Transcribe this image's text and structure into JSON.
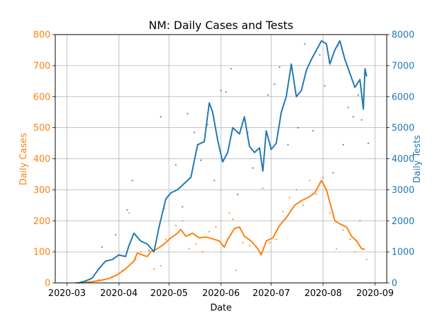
{
  "chart_data": {
    "type": "line",
    "title": "NM: Daily Cases and Tests",
    "xlabel": "Date",
    "ylabel_left": "Daily Cases",
    "ylabel_right": "Daily Tests",
    "grid": true,
    "colors": {
      "cases": "#ff7f0e",
      "tests": "#1f77b4"
    },
    "x_ticks": [
      "2020-03",
      "2020-04",
      "2020-05",
      "2020-06",
      "2020-07",
      "2020-08",
      "2020-09"
    ],
    "x_range": [
      "2020-02-23",
      "2020-09-08"
    ],
    "ylim_left": [
      0,
      800
    ],
    "ylim_right": [
      0,
      8000
    ],
    "yticks_left": [
      "0",
      "100",
      "200",
      "300",
      "400",
      "500",
      "600",
      "700",
      "800"
    ],
    "yticks_right": [
      "0",
      "1000",
      "2000",
      "3000",
      "4000",
      "5000",
      "6000",
      "7000",
      "8000"
    ],
    "series": [
      {
        "axis": "left",
        "points": [
          [
            "2020-03-06",
            0
          ],
          [
            "2020-03-11",
            1
          ],
          [
            "2020-03-16",
            4
          ],
          [
            "2020-03-21",
            8
          ],
          [
            "2020-03-26",
            14
          ],
          [
            "2020-03-31",
            26
          ],
          [
            "2020-04-05",
            45
          ],
          [
            "2020-04-10",
            70
          ],
          [
            "2020-04-12",
            96
          ],
          [
            "2020-04-15",
            90
          ],
          [
            "2020-04-18",
            85
          ],
          [
            "2020-04-20",
            100
          ],
          [
            "2020-04-24",
            110
          ],
          [
            "2020-04-28",
            125
          ],
          [
            "2020-05-02",
            145
          ],
          [
            "2020-05-06",
            160
          ],
          [
            "2020-05-08",
            172
          ],
          [
            "2020-05-11",
            150
          ],
          [
            "2020-05-15",
            160
          ],
          [
            "2020-05-19",
            145
          ],
          [
            "2020-05-23",
            148
          ],
          [
            "2020-05-27",
            142
          ],
          [
            "2020-05-31",
            135
          ],
          [
            "2020-06-03",
            115
          ],
          [
            "2020-06-05",
            140
          ],
          [
            "2020-06-09",
            175
          ],
          [
            "2020-06-12",
            180
          ],
          [
            "2020-06-15",
            150
          ],
          [
            "2020-06-19",
            135
          ],
          [
            "2020-06-23",
            110
          ],
          [
            "2020-06-25",
            90
          ],
          [
            "2020-06-28",
            135
          ],
          [
            "2020-07-02",
            145
          ],
          [
            "2020-07-06",
            185
          ],
          [
            "2020-07-10",
            210
          ],
          [
            "2020-07-15",
            250
          ],
          [
            "2020-07-19",
            265
          ],
          [
            "2020-07-23",
            275
          ],
          [
            "2020-07-27",
            290
          ],
          [
            "2020-07-31",
            330
          ],
          [
            "2020-08-03",
            300
          ],
          [
            "2020-08-06",
            240
          ],
          [
            "2020-08-08",
            200
          ],
          [
            "2020-08-11",
            190
          ],
          [
            "2020-08-15",
            180
          ],
          [
            "2020-08-18",
            150
          ],
          [
            "2020-08-21",
            135
          ],
          [
            "2020-08-24",
            110
          ],
          [
            "2020-08-26",
            108
          ]
        ],
        "scatter": [
          [
            "2020-03-20",
            10
          ],
          [
            "2020-03-28",
            20
          ],
          [
            "2020-04-03",
            40
          ],
          [
            "2020-04-07",
            225
          ],
          [
            "2020-04-11",
            75
          ],
          [
            "2020-04-14",
            100
          ],
          [
            "2020-04-22",
            45
          ],
          [
            "2020-04-26",
            55
          ],
          [
            "2020-04-29",
            140
          ],
          [
            "2020-05-05",
            185
          ],
          [
            "2020-05-09",
            200
          ],
          [
            "2020-05-13",
            110
          ],
          [
            "2020-05-17",
            125
          ],
          [
            "2020-05-21",
            100
          ],
          [
            "2020-05-25",
            165
          ],
          [
            "2020-05-29",
            180
          ],
          [
            "2020-06-02",
            120
          ],
          [
            "2020-06-06",
            225
          ],
          [
            "2020-06-08",
            205
          ],
          [
            "2020-06-10",
            40
          ],
          [
            "2020-06-14",
            130
          ],
          [
            "2020-06-18",
            120
          ],
          [
            "2020-06-22",
            115
          ],
          [
            "2020-06-26",
            305
          ],
          [
            "2020-06-30",
            130
          ],
          [
            "2020-07-04",
            140
          ],
          [
            "2020-07-08",
            230
          ],
          [
            "2020-07-12",
            275
          ],
          [
            "2020-07-16",
            300
          ],
          [
            "2020-07-20",
            250
          ],
          [
            "2020-07-24",
            330
          ],
          [
            "2020-07-28",
            285
          ],
          [
            "2020-08-01",
            340
          ],
          [
            "2020-08-05",
            225
          ],
          [
            "2020-08-09",
            110
          ],
          [
            "2020-08-13",
            170
          ],
          [
            "2020-08-17",
            140
          ],
          [
            "2020-08-20",
            100
          ],
          [
            "2020-08-23",
            200
          ],
          [
            "2020-08-27",
            75
          ]
        ]
      },
      {
        "axis": "right",
        "points": [
          [
            "2020-03-08",
            0
          ],
          [
            "2020-03-12",
            60
          ],
          [
            "2020-03-16",
            150
          ],
          [
            "2020-03-20",
            450
          ],
          [
            "2020-03-24",
            700
          ],
          [
            "2020-03-28",
            750
          ],
          [
            "2020-04-01",
            900
          ],
          [
            "2020-04-05",
            850
          ],
          [
            "2020-04-07",
            1200
          ],
          [
            "2020-04-10",
            1600
          ],
          [
            "2020-04-14",
            1350
          ],
          [
            "2020-04-18",
            1250
          ],
          [
            "2020-04-22",
            1000
          ],
          [
            "2020-04-25",
            1800
          ],
          [
            "2020-04-29",
            2700
          ],
          [
            "2020-05-02",
            2900
          ],
          [
            "2020-05-06",
            3000
          ],
          [
            "2020-05-10",
            3200
          ],
          [
            "2020-05-14",
            3400
          ],
          [
            "2020-05-18",
            4450
          ],
          [
            "2020-05-22",
            4550
          ],
          [
            "2020-05-25",
            5800
          ],
          [
            "2020-05-27",
            5500
          ],
          [
            "2020-05-30",
            4600
          ],
          [
            "2020-06-02",
            3900
          ],
          [
            "2020-06-05",
            4200
          ],
          [
            "2020-06-08",
            5000
          ],
          [
            "2020-06-12",
            4800
          ],
          [
            "2020-06-15",
            5350
          ],
          [
            "2020-06-18",
            4400
          ],
          [
            "2020-06-21",
            4200
          ],
          [
            "2020-06-24",
            4350
          ],
          [
            "2020-06-26",
            3600
          ],
          [
            "2020-06-28",
            4900
          ],
          [
            "2020-07-01",
            4300
          ],
          [
            "2020-07-04",
            4500
          ],
          [
            "2020-07-07",
            5500
          ],
          [
            "2020-07-10",
            6000
          ],
          [
            "2020-07-13",
            7050
          ],
          [
            "2020-07-16",
            6000
          ],
          [
            "2020-07-19",
            6200
          ],
          [
            "2020-07-22",
            6850
          ],
          [
            "2020-07-25",
            7200
          ],
          [
            "2020-07-28",
            7500
          ],
          [
            "2020-07-31",
            7800
          ],
          [
            "2020-08-03",
            7700
          ],
          [
            "2020-08-05",
            7050
          ],
          [
            "2020-08-08",
            7500
          ],
          [
            "2020-08-11",
            7800
          ],
          [
            "2020-08-14",
            7200
          ],
          [
            "2020-08-17",
            6750
          ],
          [
            "2020-08-20",
            6300
          ],
          [
            "2020-08-23",
            6550
          ],
          [
            "2020-08-25",
            5600
          ],
          [
            "2020-08-26",
            6900
          ],
          [
            "2020-08-27",
            6650
          ]
        ],
        "scatter": [
          [
            "2020-03-22",
            1150
          ],
          [
            "2020-03-30",
            1550
          ],
          [
            "2020-04-06",
            2350
          ],
          [
            "2020-04-09",
            3300
          ],
          [
            "2020-04-19",
            1050
          ],
          [
            "2020-04-26",
            5350
          ],
          [
            "2020-04-28",
            2400
          ],
          [
            "2020-05-05",
            3800
          ],
          [
            "2020-05-09",
            2450
          ],
          [
            "2020-05-12",
            5450
          ],
          [
            "2020-05-16",
            4850
          ],
          [
            "2020-05-20",
            3950
          ],
          [
            "2020-05-24",
            5100
          ],
          [
            "2020-05-28",
            3300
          ],
          [
            "2020-06-01",
            6200
          ],
          [
            "2020-06-04",
            6150
          ],
          [
            "2020-06-07",
            6900
          ],
          [
            "2020-06-11",
            2850
          ],
          [
            "2020-06-17",
            4850
          ],
          [
            "2020-06-20",
            3700
          ],
          [
            "2020-06-29",
            6050
          ],
          [
            "2020-07-03",
            6400
          ],
          [
            "2020-07-06",
            6950
          ],
          [
            "2020-07-11",
            4450
          ],
          [
            "2020-07-17",
            5000
          ],
          [
            "2020-07-21",
            7700
          ],
          [
            "2020-07-26",
            4900
          ],
          [
            "2020-07-30",
            7350
          ],
          [
            "2020-08-02",
            6350
          ],
          [
            "2020-08-07",
            3550
          ],
          [
            "2020-08-10",
            7650
          ],
          [
            "2020-08-13",
            4450
          ],
          [
            "2020-08-16",
            5650
          ],
          [
            "2020-08-19",
            5350
          ],
          [
            "2020-08-22",
            6050
          ],
          [
            "2020-08-24",
            5250
          ],
          [
            "2020-08-28",
            4500
          ]
        ]
      }
    ]
  }
}
